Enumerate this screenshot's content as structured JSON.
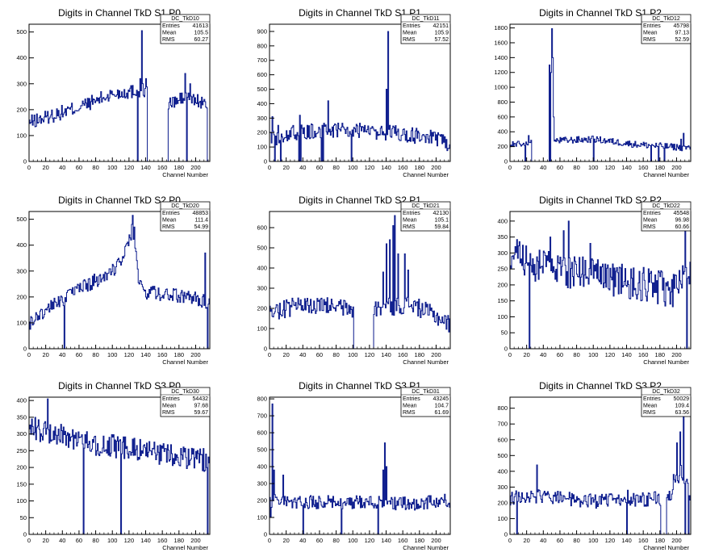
{
  "chart_data": [
    {
      "type": "histogram",
      "title": "Digits in Channel TkD S1 P0",
      "xlabel": "Channel Number",
      "ylabel": "",
      "xlim": [
        0,
        217
      ],
      "ylim": [
        0,
        530
      ],
      "yticks": [
        0,
        100,
        200,
        300,
        400,
        500
      ],
      "stats": {
        "name": "DC_TkD10",
        "entries": "41613",
        "mean": "105.5",
        "rms": "60.27"
      },
      "spikes": [
        [
          130,
          0
        ],
        [
          133,
          320
        ],
        [
          135,
          505
        ],
        [
          140,
          320
        ],
        [
          142,
          0
        ],
        [
          166,
          0
        ],
        [
          187,
          340
        ],
        [
          189,
          0
        ],
        [
          193,
          300
        ],
        [
          212,
          210
        ],
        [
          214,
          0
        ]
      ],
      "profile": {
        "base": [
          [
            0,
            150
          ],
          [
            20,
            170
          ],
          [
            60,
            210
          ],
          [
            100,
            260
          ],
          [
            130,
            275
          ]
        ],
        "gaps": [
          [
            142,
            166
          ],
          [
            214,
            217
          ]
        ],
        "base2": [
          [
            166,
            220
          ],
          [
            190,
            250
          ],
          [
            212,
            220
          ]
        ],
        "noise": 28
      }
    },
    {
      "type": "histogram",
      "title": "Digits in Channel TkD S1 P1",
      "xlabel": "Channel Number",
      "ylabel": "",
      "xlim": [
        0,
        217
      ],
      "ylim": [
        0,
        950
      ],
      "yticks": [
        0,
        100,
        200,
        300,
        400,
        500,
        600,
        700,
        800,
        900
      ],
      "stats": {
        "name": "DC_TkD11",
        "entries": "42151",
        "mean": "105.9",
        "rms": "57.52"
      },
      "spikes": [
        [
          3,
          310
        ],
        [
          6,
          0
        ],
        [
          10,
          250
        ],
        [
          13,
          0
        ],
        [
          35,
          0
        ],
        [
          36,
          320
        ],
        [
          37,
          0
        ],
        [
          62,
          0
        ],
        [
          63,
          250
        ],
        [
          64,
          0
        ],
        [
          70,
          420
        ],
        [
          98,
          0
        ],
        [
          140,
          500
        ],
        [
          142,
          900
        ],
        [
          144,
          250
        ]
      ],
      "profile": {
        "base": [
          [
            0,
            150
          ],
          [
            30,
            200
          ],
          [
            80,
            220
          ],
          [
            140,
            200
          ],
          [
            190,
            170
          ],
          [
            217,
            120
          ]
        ],
        "gaps": [],
        "base2": [],
        "noise": 55
      }
    },
    {
      "type": "histogram",
      "title": "Digits in Channel TkD S1 P2",
      "xlabel": "Channel Number",
      "ylabel": "",
      "xlim": [
        0,
        217
      ],
      "ylim": [
        0,
        1850
      ],
      "yticks": [
        0,
        200,
        400,
        600,
        800,
        1000,
        1200,
        1400,
        1600,
        1800
      ],
      "stats": {
        "name": "DC_TkD12",
        "entries": "45798",
        "mean": "97.13",
        "rms": "52.59"
      },
      "spikes": [
        [
          18,
          0
        ],
        [
          22,
          350
        ],
        [
          46,
          0
        ],
        [
          47,
          1300
        ],
        [
          48,
          0
        ],
        [
          49,
          1200
        ],
        [
          50,
          1790
        ],
        [
          51,
          1400
        ],
        [
          52,
          600
        ],
        [
          100,
          0
        ],
        [
          169,
          0
        ],
        [
          178,
          0
        ],
        [
          185,
          0
        ],
        [
          205,
          300
        ],
        [
          208,
          380
        ],
        [
          210,
          200
        ]
      ],
      "profile": {
        "base": [
          [
            0,
            220
          ],
          [
            25,
            250
          ],
          [
            45,
            260
          ],
          [
            55,
            280
          ],
          [
            100,
            300
          ],
          [
            150,
            230
          ],
          [
            190,
            200
          ],
          [
            217,
            180
          ]
        ],
        "gaps": [
          [
            26,
            46
          ]
        ],
        "base2": [],
        "noise": 45
      }
    },
    {
      "type": "histogram",
      "title": "Digits in Channel TkD S2 P0",
      "xlabel": "Channel Number",
      "ylabel": "",
      "xlim": [
        0,
        217
      ],
      "ylim": [
        0,
        530
      ],
      "yticks": [
        0,
        100,
        200,
        300,
        400,
        500
      ],
      "stats": {
        "name": "DC_TkD20",
        "entries": "48853",
        "mean": "111.4",
        "rms": "54.99"
      },
      "spikes": [
        [
          42,
          0
        ],
        [
          120,
          440
        ],
        [
          123,
          480
        ],
        [
          124,
          515
        ],
        [
          126,
          470
        ],
        [
          211,
          370
        ],
        [
          214,
          0
        ]
      ],
      "profile": {
        "base": [
          [
            0,
            100
          ],
          [
            20,
            150
          ],
          [
            60,
            230
          ],
          [
            100,
            300
          ],
          [
            126,
            430
          ],
          [
            130,
            280
          ],
          [
            140,
            220
          ],
          [
            190,
            200
          ],
          [
            217,
            180
          ]
        ],
        "gaps": [],
        "base2": [],
        "noise": 28
      }
    },
    {
      "type": "histogram",
      "title": "Digits in Channel TkD S2 P1",
      "xlabel": "Channel Number",
      "ylabel": "",
      "xlim": [
        0,
        217
      ],
      "ylim": [
        0,
        680
      ],
      "yticks": [
        0,
        100,
        200,
        300,
        400,
        500,
        600
      ],
      "stats": {
        "name": "DC_TkD21",
        "entries": "42130",
        "mean": "105.1",
        "rms": "59.84"
      },
      "spikes": [
        [
          101,
          0
        ],
        [
          104,
          0
        ],
        [
          108,
          0
        ],
        [
          118,
          0
        ],
        [
          136,
          380
        ],
        [
          140,
          520
        ],
        [
          144,
          540
        ],
        [
          148,
          610
        ],
        [
          150,
          660
        ],
        [
          154,
          470
        ],
        [
          162,
          470
        ],
        [
          166,
          390
        ]
      ],
      "profile": {
        "base": [
          [
            0,
            180
          ],
          [
            30,
            210
          ],
          [
            80,
            210
          ],
          [
            100,
            190
          ],
          [
            130,
            200
          ],
          [
            170,
            220
          ],
          [
            200,
            160
          ],
          [
            217,
            120
          ]
        ],
        "gaps": [
          [
            101,
            125
          ]
        ],
        "base2": [],
        "noise": 45
      }
    },
    {
      "type": "histogram",
      "title": "Digits in Channel TkD S2 P2",
      "xlabel": "Channel Number",
      "ylabel": "",
      "xlim": [
        0,
        217
      ],
      "ylim": [
        0,
        430
      ],
      "yticks": [
        0,
        50,
        100,
        150,
        200,
        250,
        300,
        350,
        400
      ],
      "stats": {
        "name": "DC_TkD22",
        "entries": "45548",
        "mean": "96.98",
        "rms": "60.66"
      },
      "spikes": [
        [
          23,
          0
        ],
        [
          70,
          400
        ],
        [
          64,
          370
        ],
        [
          48,
          350
        ],
        [
          96,
          330
        ],
        [
          210,
          410
        ],
        [
          212,
          0
        ]
      ],
      "profile": {
        "base": [
          [
            0,
            300
          ],
          [
            30,
            260
          ],
          [
            80,
            240
          ],
          [
            140,
            210
          ],
          [
            200,
            180
          ],
          [
            217,
            250
          ]
        ],
        "gaps": [],
        "base2": [],
        "noise": 55
      }
    },
    {
      "type": "histogram",
      "title": "Digits in Channel TkD S3 P0",
      "xlabel": "Channel Number",
      "ylabel": "",
      "xlim": [
        0,
        217
      ],
      "ylim": [
        0,
        410
      ],
      "yticks": [
        0,
        50,
        100,
        150,
        200,
        250,
        300,
        350,
        400
      ],
      "stats": {
        "name": "DC_TkD30",
        "entries": "54432",
        "mean": "97.68",
        "rms": "59.67"
      },
      "spikes": [
        [
          22,
          405
        ],
        [
          65,
          0
        ],
        [
          110,
          0
        ],
        [
          212,
          240
        ],
        [
          214,
          0
        ]
      ],
      "profile": {
        "base": [
          [
            0,
            320
          ],
          [
            30,
            300
          ],
          [
            80,
            270
          ],
          [
            140,
            250
          ],
          [
            180,
            230
          ],
          [
            217,
            220
          ]
        ],
        "gaps": [],
        "base2": [],
        "noise": 35
      }
    },
    {
      "type": "histogram",
      "title": "Digits in Channel TkD S3 P1",
      "xlabel": "Channel Number",
      "ylabel": "",
      "xlim": [
        0,
        217
      ],
      "ylim": [
        0,
        810
      ],
      "yticks": [
        0,
        100,
        200,
        300,
        400,
        500,
        600,
        700,
        800
      ],
      "stats": {
        "name": "DC_TkD31",
        "entries": "43245",
        "mean": "104.7",
        "rms": "61.69"
      },
      "spikes": [
        [
          1,
          100
        ],
        [
          3,
          770
        ],
        [
          5,
          380
        ],
        [
          16,
          350
        ],
        [
          40,
          0
        ],
        [
          86,
          0
        ],
        [
          130,
          0
        ],
        [
          136,
          380
        ],
        [
          138,
          540
        ],
        [
          140,
          400
        ]
      ],
      "profile": {
        "base": [
          [
            0,
            200
          ],
          [
            20,
            190
          ],
          [
            60,
            190
          ],
          [
            120,
            190
          ],
          [
            170,
            180
          ],
          [
            217,
            200
          ]
        ],
        "gaps": [],
        "base2": [],
        "noise": 40
      }
    },
    {
      "type": "histogram",
      "title": "Digits in Channel TkD S3 P2",
      "xlabel": "Channel Number",
      "ylabel": "",
      "xlim": [
        0,
        217
      ],
      "ylim": [
        0,
        870
      ],
      "yticks": [
        0,
        100,
        200,
        300,
        400,
        500,
        600,
        700,
        800
      ],
      "stats": {
        "name": "DC_TkD32",
        "entries": "50029",
        "mean": "109.4",
        "rms": "63.56"
      },
      "spikes": [
        [
          8,
          0
        ],
        [
          32,
          440
        ],
        [
          140,
          0
        ],
        [
          141,
          280
        ],
        [
          182,
          0
        ],
        [
          196,
          380
        ],
        [
          200,
          580
        ],
        [
          204,
          650
        ],
        [
          208,
          770
        ],
        [
          210,
          0
        ],
        [
          214,
          0
        ]
      ],
      "profile": {
        "base": [
          [
            0,
            230
          ],
          [
            40,
            240
          ],
          [
            100,
            210
          ],
          [
            150,
            220
          ],
          [
            190,
            230
          ],
          [
            205,
            400
          ],
          [
            217,
            250
          ]
        ],
        "gaps": [
          [
            181,
            188
          ]
        ],
        "base2": [],
        "noise": 45
      }
    }
  ],
  "stats_labels": {
    "entries": "Entries",
    "mean": "Mean",
    "rms": "RMS"
  },
  "xticks": [
    0,
    20,
    40,
    60,
    80,
    100,
    120,
    140,
    160,
    180,
    200
  ],
  "colors": {
    "line": "#0a1a8c",
    "axis": "#000000",
    "background": "#ffffff"
  }
}
